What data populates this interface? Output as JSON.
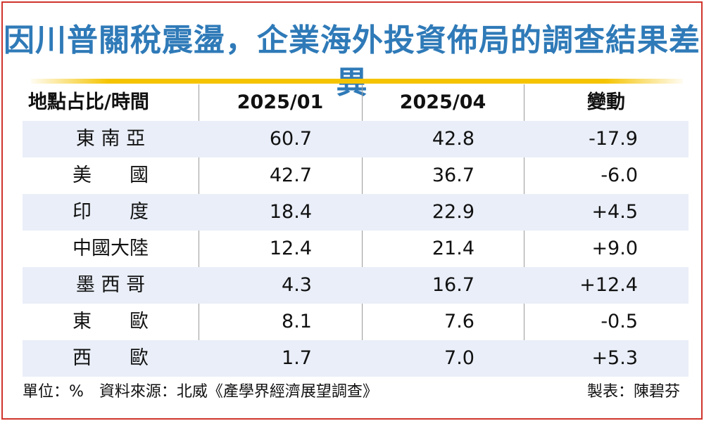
{
  "title": "因川普關稅震盪，企業海外投資佈局的調查結果差異",
  "table": {
    "headers": [
      "地點占比/時間",
      "2025/01",
      "2025/04",
      "變動"
    ],
    "rows": [
      {
        "location": "東 南 亞",
        "jan": "60.7",
        "apr": "42.8",
        "change": "-17.9"
      },
      {
        "location": "美　　國",
        "jan": "42.7",
        "apr": "36.7",
        "change": "-6.0"
      },
      {
        "location": "印　　度",
        "jan": "18.4",
        "apr": "22.9",
        "change": "+4.5"
      },
      {
        "location": "中國大陸",
        "jan": "12.4",
        "apr": "21.4",
        "change": "+9.0"
      },
      {
        "location": "墨 西 哥",
        "jan": "4.3",
        "apr": "16.7",
        "change": "+12.4"
      },
      {
        "location": "東　　歐",
        "jan": "8.1",
        "apr": "7.6",
        "change": "-0.5"
      },
      {
        "location": "西　　歐",
        "jan": "1.7",
        "apr": "7.0",
        "change": "+5.3"
      }
    ]
  },
  "footer": {
    "unit_and_source": "單位：%　資料來源：北威《產學界經濟展望調查》",
    "credit": "製表：陳碧芬"
  },
  "colors": {
    "title": "#2f7ab8",
    "accent_line": "#f5c400",
    "row_shade": "#e9eef8",
    "border": "#d0342c"
  }
}
